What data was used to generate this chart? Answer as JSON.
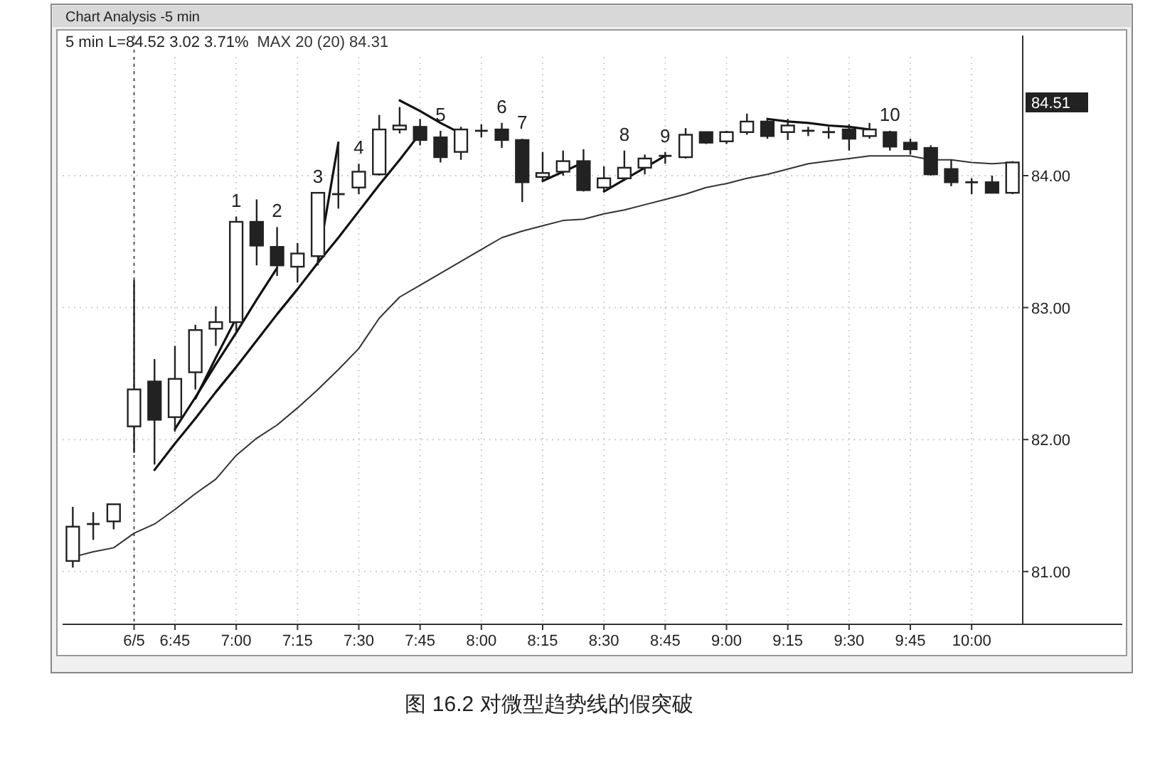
{
  "chart_data": {
    "type": "candlestick",
    "title": "Chart Analysis -5 min",
    "subtitle": "5 min L=84.52 3.02 3.71%",
    "annotations": [
      "84.51",
      "图 16.2   对微型趋势线的假突破"
    ],
    "categories": [
      null,
      null,
      null,
      "6/5",
      null,
      "6:45",
      null,
      null,
      "7:00",
      null,
      null,
      "7:15",
      null,
      null,
      "7:30",
      null,
      null,
      "7:45",
      null,
      null,
      "8:00",
      null,
      null,
      "8:15",
      null,
      null,
      "8:30",
      null,
      null,
      "8:45",
      null,
      null,
      "9:00",
      null,
      null,
      "9:15",
      null,
      null,
      "9:30",
      null,
      null,
      "9:45",
      null,
      null,
      "10:00",
      null,
      null
    ],
    "ylim": [
      80.6,
      84.9
    ],
    "yticks": [
      {
        "value": 81,
        "label": "81.00"
      },
      {
        "value": 82,
        "label": "82.00"
      },
      {
        "value": 83,
        "label": "83.00"
      },
      {
        "value": 84,
        "label": "84.00"
      }
    ],
    "grid": true,
    "ref_lines": [
      {
        "axis": "x",
        "value": "6/5",
        "line_style": "dotted",
        "color": "#555555"
      }
    ],
    "ohlc": [
      [
        81.08,
        81.49,
        81.03,
        81.34
      ],
      [
        81.36,
        81.45,
        81.24,
        81.36
      ],
      [
        81.38,
        81.51,
        81.32,
        81.51
      ],
      [
        82.1,
        83.21,
        81.9,
        82.38
      ],
      [
        82.44,
        82.61,
        81.81,
        82.15
      ],
      [
        82.17,
        82.71,
        82.06,
        82.46
      ],
      [
        82.51,
        82.87,
        82.38,
        82.83
      ],
      [
        82.84,
        83.01,
        82.71,
        82.89
      ],
      [
        82.89,
        83.69,
        82.81,
        83.65
      ],
      [
        83.65,
        83.82,
        83.32,
        83.47
      ],
      [
        83.46,
        83.61,
        83.24,
        83.32
      ],
      [
        83.31,
        83.49,
        83.19,
        83.41
      ],
      [
        83.39,
        83.87,
        83.32,
        83.87
      ],
      [
        83.86,
        84.25,
        83.75,
        83.86
      ],
      [
        83.91,
        84.09,
        83.86,
        84.03
      ],
      [
        84.01,
        84.46,
        84.0,
        84.35
      ],
      [
        84.35,
        84.52,
        84.32,
        84.38
      ],
      [
        84.37,
        84.43,
        84.23,
        84.27
      ],
      [
        84.29,
        84.34,
        84.1,
        84.14
      ],
      [
        84.18,
        84.37,
        84.12,
        84.35
      ],
      [
        84.34,
        84.39,
        84.29,
        84.34
      ],
      [
        84.35,
        84.4,
        84.21,
        84.27
      ],
      [
        84.27,
        84.28,
        83.8,
        83.95
      ],
      [
        83.99,
        84.18,
        83.96,
        84.02
      ],
      [
        84.03,
        84.19,
        84.0,
        84.11
      ],
      [
        84.11,
        84.2,
        83.88,
        83.89
      ],
      [
        83.91,
        84.07,
        83.88,
        83.98
      ],
      [
        83.98,
        84.19,
        83.96,
        84.06
      ],
      [
        84.06,
        84.16,
        84.01,
        84.13
      ],
      [
        84.15,
        84.18,
        84.09,
        84.15
      ],
      [
        84.14,
        84.36,
        84.13,
        84.31
      ],
      [
        84.33,
        84.33,
        84.24,
        84.25
      ],
      [
        84.26,
        84.34,
        84.24,
        84.33
      ],
      [
        84.33,
        84.47,
        84.31,
        84.41
      ],
      [
        84.41,
        84.43,
        84.28,
        84.3
      ],
      [
        84.33,
        84.43,
        84.27,
        84.38
      ],
      [
        84.34,
        84.37,
        84.3,
        84.34
      ],
      [
        84.33,
        84.37,
        84.28,
        84.33
      ],
      [
        84.35,
        84.39,
        84.19,
        84.28
      ],
      [
        84.3,
        84.4,
        84.28,
        84.35
      ],
      [
        84.33,
        84.34,
        84.19,
        84.22
      ],
      [
        84.25,
        84.28,
        84.16,
        84.2
      ],
      [
        84.21,
        84.23,
        84.0,
        84.01
      ],
      [
        84.05,
        84.12,
        83.92,
        83.95
      ],
      [
        83.96,
        83.98,
        83.86,
        83.95
      ],
      [
        83.95,
        84.0,
        83.87,
        83.87
      ],
      [
        83.87,
        84.11,
        83.86,
        84.1
      ]
    ],
    "value_labels": [
      null,
      null,
      null,
      null,
      null,
      null,
      null,
      null,
      "1",
      null,
      "2",
      null,
      "3",
      null,
      "4",
      null,
      null,
      null,
      "5",
      null,
      null,
      "6",
      "7",
      null,
      null,
      null,
      null,
      "8",
      null,
      "9",
      null,
      null,
      null,
      null,
      null,
      null,
      null,
      null,
      null,
      null,
      "10",
      null,
      null,
      null,
      null,
      null,
      null
    ],
    "series": [
      {
        "type": "line",
        "name": "MAX 20 (20) 84.31",
        "color": "#333333",
        "values": [
          81.11,
          81.15,
          81.18,
          81.29,
          81.36,
          81.47,
          81.59,
          81.7,
          81.88,
          82.01,
          82.11,
          82.24,
          82.38,
          82.53,
          82.69,
          82.92,
          83.08,
          83.17,
          83.26,
          83.35,
          83.44,
          83.53,
          83.58,
          83.62,
          83.66,
          83.67,
          83.71,
          83.74,
          83.78,
          83.82,
          83.86,
          83.91,
          83.94,
          83.98,
          84.01,
          84.05,
          84.09,
          84.11,
          84.13,
          84.15,
          84.15,
          84.15,
          84.12,
          84.12,
          84.1,
          84.09,
          84.1
        ]
      },
      {
        "type": "line",
        "color": "#111111",
        "values": [
          null,
          null,
          null,
          null,
          81.77,
          81.97,
          82.16,
          82.36,
          82.55,
          82.75,
          82.95,
          83.14,
          83.34,
          83.53,
          83.73,
          83.93,
          84.12,
          84.32,
          null,
          null,
          null,
          null,
          null,
          null,
          null,
          null,
          null,
          null,
          null,
          null,
          null,
          null,
          null,
          null,
          null,
          null,
          null,
          null,
          null,
          null,
          null,
          null,
          null,
          null,
          null,
          null,
          null
        ]
      },
      {
        "type": "line",
        "color": "#111111",
        "values": [
          null,
          null,
          null,
          null,
          null,
          82.08,
          82.32,
          82.57,
          82.81,
          83.06,
          83.3,
          null,
          null,
          null,
          null,
          null,
          null,
          null,
          null,
          null,
          null,
          null,
          null,
          null,
          null,
          null,
          null,
          null,
          null,
          null,
          null,
          null,
          null,
          null,
          null,
          null,
          null,
          null,
          null,
          null,
          null,
          null,
          null,
          null,
          null,
          null,
          null
        ]
      },
      {
        "type": "line",
        "color": "#111111",
        "values": [
          null,
          null,
          null,
          null,
          null,
          null,
          82.31,
          82.62,
          82.92,
          null,
          null,
          null,
          null,
          null,
          null,
          null,
          null,
          null,
          null,
          null,
          null,
          null,
          null,
          null,
          null,
          null,
          null,
          null,
          null,
          null,
          null,
          null,
          null,
          null,
          null,
          null,
          null,
          null,
          null,
          null,
          null,
          null,
          null,
          null,
          null,
          null,
          null
        ]
      },
      {
        "type": "line",
        "color": "#111111",
        "values": [
          null,
          null,
          null,
          null,
          null,
          null,
          null,
          null,
          null,
          null,
          null,
          null,
          83.35,
          84.25,
          null,
          null,
          null,
          null,
          null,
          null,
          null,
          null,
          null,
          null,
          null,
          null,
          null,
          null,
          null,
          null,
          null,
          null,
          null,
          null,
          null,
          null,
          null,
          null,
          null,
          null,
          null,
          null,
          null,
          null,
          null,
          null,
          null
        ]
      },
      {
        "type": "line",
        "color": "#111111",
        "values": [
          null,
          null,
          null,
          null,
          null,
          null,
          null,
          null,
          null,
          null,
          null,
          null,
          null,
          null,
          null,
          null,
          84.57,
          84.49,
          84.4,
          84.32,
          null,
          null,
          null,
          null,
          null,
          null,
          null,
          null,
          null,
          null,
          null,
          null,
          null,
          null,
          null,
          null,
          null,
          null,
          null,
          null,
          null,
          null,
          null,
          null,
          null,
          null,
          null
        ]
      },
      {
        "type": "line",
        "color": "#111111",
        "values": [
          null,
          null,
          null,
          null,
          null,
          null,
          null,
          null,
          null,
          null,
          null,
          null,
          null,
          null,
          null,
          null,
          null,
          null,
          null,
          null,
          null,
          null,
          null,
          83.96,
          84.03,
          84.1,
          null,
          null,
          null,
          null,
          null,
          null,
          null,
          null,
          null,
          null,
          null,
          null,
          null,
          null,
          null,
          null,
          null,
          null,
          null,
          null,
          null
        ]
      },
      {
        "type": "line",
        "color": "#111111",
        "values": [
          null,
          null,
          null,
          null,
          null,
          null,
          null,
          null,
          null,
          null,
          null,
          null,
          null,
          null,
          null,
          null,
          null,
          null,
          null,
          null,
          null,
          null,
          null,
          null,
          null,
          null,
          83.88,
          83.97,
          84.06,
          84.15,
          null,
          null,
          null,
          null,
          null,
          null,
          null,
          null,
          null,
          null,
          null,
          null,
          null,
          null,
          null,
          null,
          null
        ]
      },
      {
        "type": "line",
        "color": "#111111",
        "values": [
          null,
          null,
          null,
          null,
          null,
          null,
          null,
          null,
          null,
          null,
          null,
          null,
          null,
          null,
          null,
          null,
          null,
          null,
          null,
          null,
          null,
          null,
          null,
          null,
          null,
          null,
          null,
          null,
          null,
          null,
          null,
          null,
          null,
          null,
          84.43,
          84.41,
          84.4,
          84.38,
          84.37,
          84.35,
          null,
          null,
          null,
          null,
          null,
          null,
          null
        ]
      }
    ]
  }
}
